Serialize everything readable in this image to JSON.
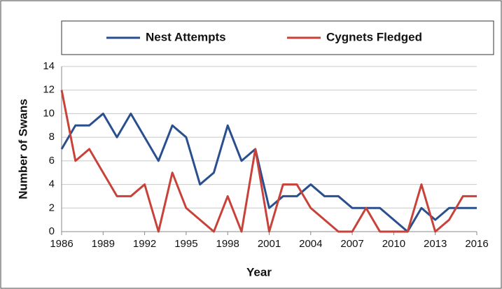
{
  "chart_data": {
    "type": "line",
    "x": [
      1986,
      1987,
      1988,
      1989,
      1990,
      1991,
      1992,
      1993,
      1994,
      1995,
      1996,
      1997,
      1998,
      1999,
      2000,
      2001,
      2002,
      2003,
      2004,
      2005,
      2006,
      2007,
      2008,
      2009,
      2010,
      2011,
      2012,
      2013,
      2014,
      2015,
      2016
    ],
    "series": [
      {
        "name": "Nest Attempts",
        "color": "#2a4f8f",
        "values": [
          7,
          9,
          9,
          10,
          8,
          10,
          8,
          6,
          9,
          8,
          4,
          5,
          9,
          6,
          7,
          2,
          3,
          3,
          4,
          3,
          3,
          2,
          2,
          2,
          1,
          0,
          2,
          1,
          2,
          2,
          2
        ]
      },
      {
        "name": "Cygnets Fledged",
        "color": "#c8423a",
        "values": [
          12,
          6,
          7,
          5,
          3,
          3,
          4,
          0,
          5,
          2,
          1,
          0,
          3,
          0,
          7,
          0,
          4,
          4,
          2,
          1,
          0,
          0,
          2,
          0,
          0,
          0,
          4,
          0,
          1,
          3,
          3
        ]
      }
    ],
    "xlabel": "Year",
    "ylabel": "Number of Swans",
    "xlim": [
      1986,
      2016
    ],
    "xticks": [
      1986,
      1989,
      1992,
      1995,
      1998,
      2001,
      2004,
      2007,
      2010,
      2013,
      2016
    ],
    "ylim": [
      0,
      14
    ],
    "yticks": [
      0,
      2,
      4,
      6,
      8,
      10,
      12,
      14
    ],
    "grid": true
  }
}
